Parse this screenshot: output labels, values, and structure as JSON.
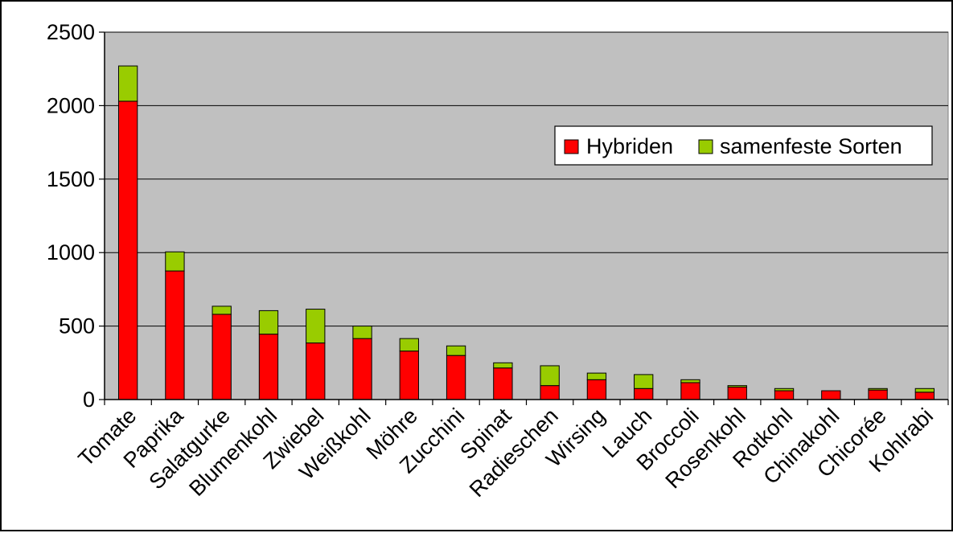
{
  "chart_data": {
    "type": "bar",
    "stacked": true,
    "title": "",
    "xlabel": "",
    "ylabel": "",
    "ylim": [
      0,
      2500
    ],
    "yticks": [
      0,
      500,
      1000,
      1500,
      2000,
      2500
    ],
    "grid": true,
    "legend_position": "right",
    "plot_background": "#c0c0c0",
    "categories": [
      "Tomate",
      "Paprika",
      "Salatgurke",
      "Blumenkohl",
      "Zwiebel",
      "Weißkohl",
      "Möhre",
      "Zucchini",
      "Spinat",
      "Radieschen",
      "Wirsing",
      "Lauch",
      "Broccoli",
      "Rosenkohl",
      "Rotkohl",
      "Chinakohl",
      "Chicorée",
      "Kohlrabi"
    ],
    "series": [
      {
        "name": "Hybriden",
        "color": "#ff0000",
        "values": [
          2030,
          875,
          580,
          445,
          385,
          415,
          330,
          300,
          215,
          95,
          135,
          75,
          115,
          85,
          60,
          60,
          65,
          50
        ]
      },
      {
        "name": "samenfeste Sorten",
        "color": "#99cc00",
        "values": [
          240,
          130,
          55,
          160,
          230,
          85,
          85,
          65,
          35,
          135,
          45,
          95,
          20,
          10,
          15,
          0,
          10,
          25
        ]
      }
    ]
  }
}
